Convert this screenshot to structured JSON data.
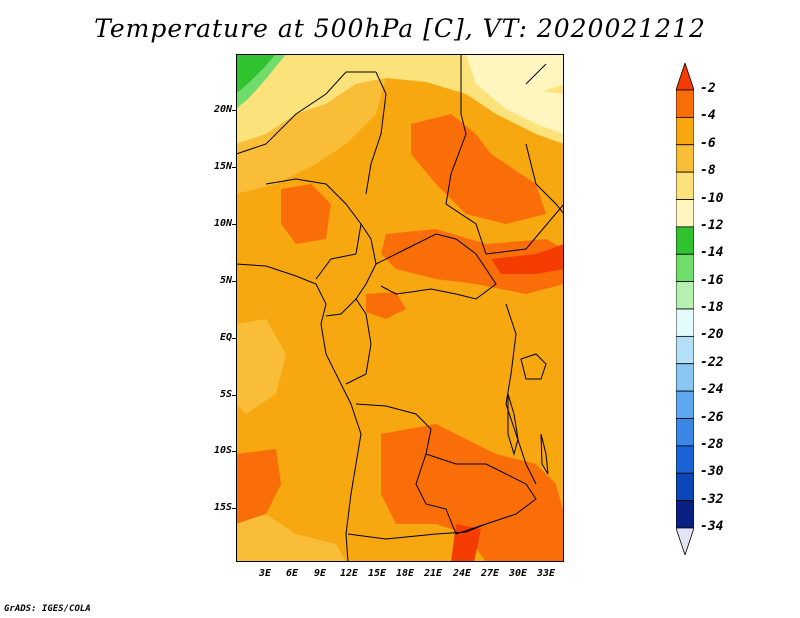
{
  "title": "Temperature at 500hPa [C], VT: 2020021212",
  "credit": "GrADS: IGES/COLA",
  "map": {
    "region": "Central and Southern Africa",
    "lat_labels": [
      "20N",
      "15N",
      "10N",
      "5N",
      "EQ",
      "5S",
      "10S",
      "15S"
    ],
    "lon_labels": [
      "3E",
      "6E",
      "9E",
      "12E",
      "15E",
      "18E",
      "21E",
      "24E",
      "27E",
      "30E",
      "33E"
    ],
    "background_color": "#f7a70f"
  },
  "colorbar": {
    "labels": [
      "-2",
      "-4",
      "-6",
      "-8",
      "-10",
      "-12",
      "-14",
      "-16",
      "-18",
      "-20",
      "-22",
      "-24",
      "-26",
      "-28",
      "-30",
      "-32",
      "-34"
    ],
    "colors": [
      "#f53c00",
      "#fa6e0a",
      "#f7a70f",
      "#f9bd38",
      "#fce27a",
      "#fff6bf",
      "#31c22f",
      "#6fdc6b",
      "#b5f0b0",
      "#e4fbfc",
      "#b3dff7",
      "#8ac6f4",
      "#5ca7ee",
      "#3a87e6",
      "#1a63d6",
      "#0c47b8",
      "#0a1f82",
      "#e4e4f7"
    ]
  }
}
